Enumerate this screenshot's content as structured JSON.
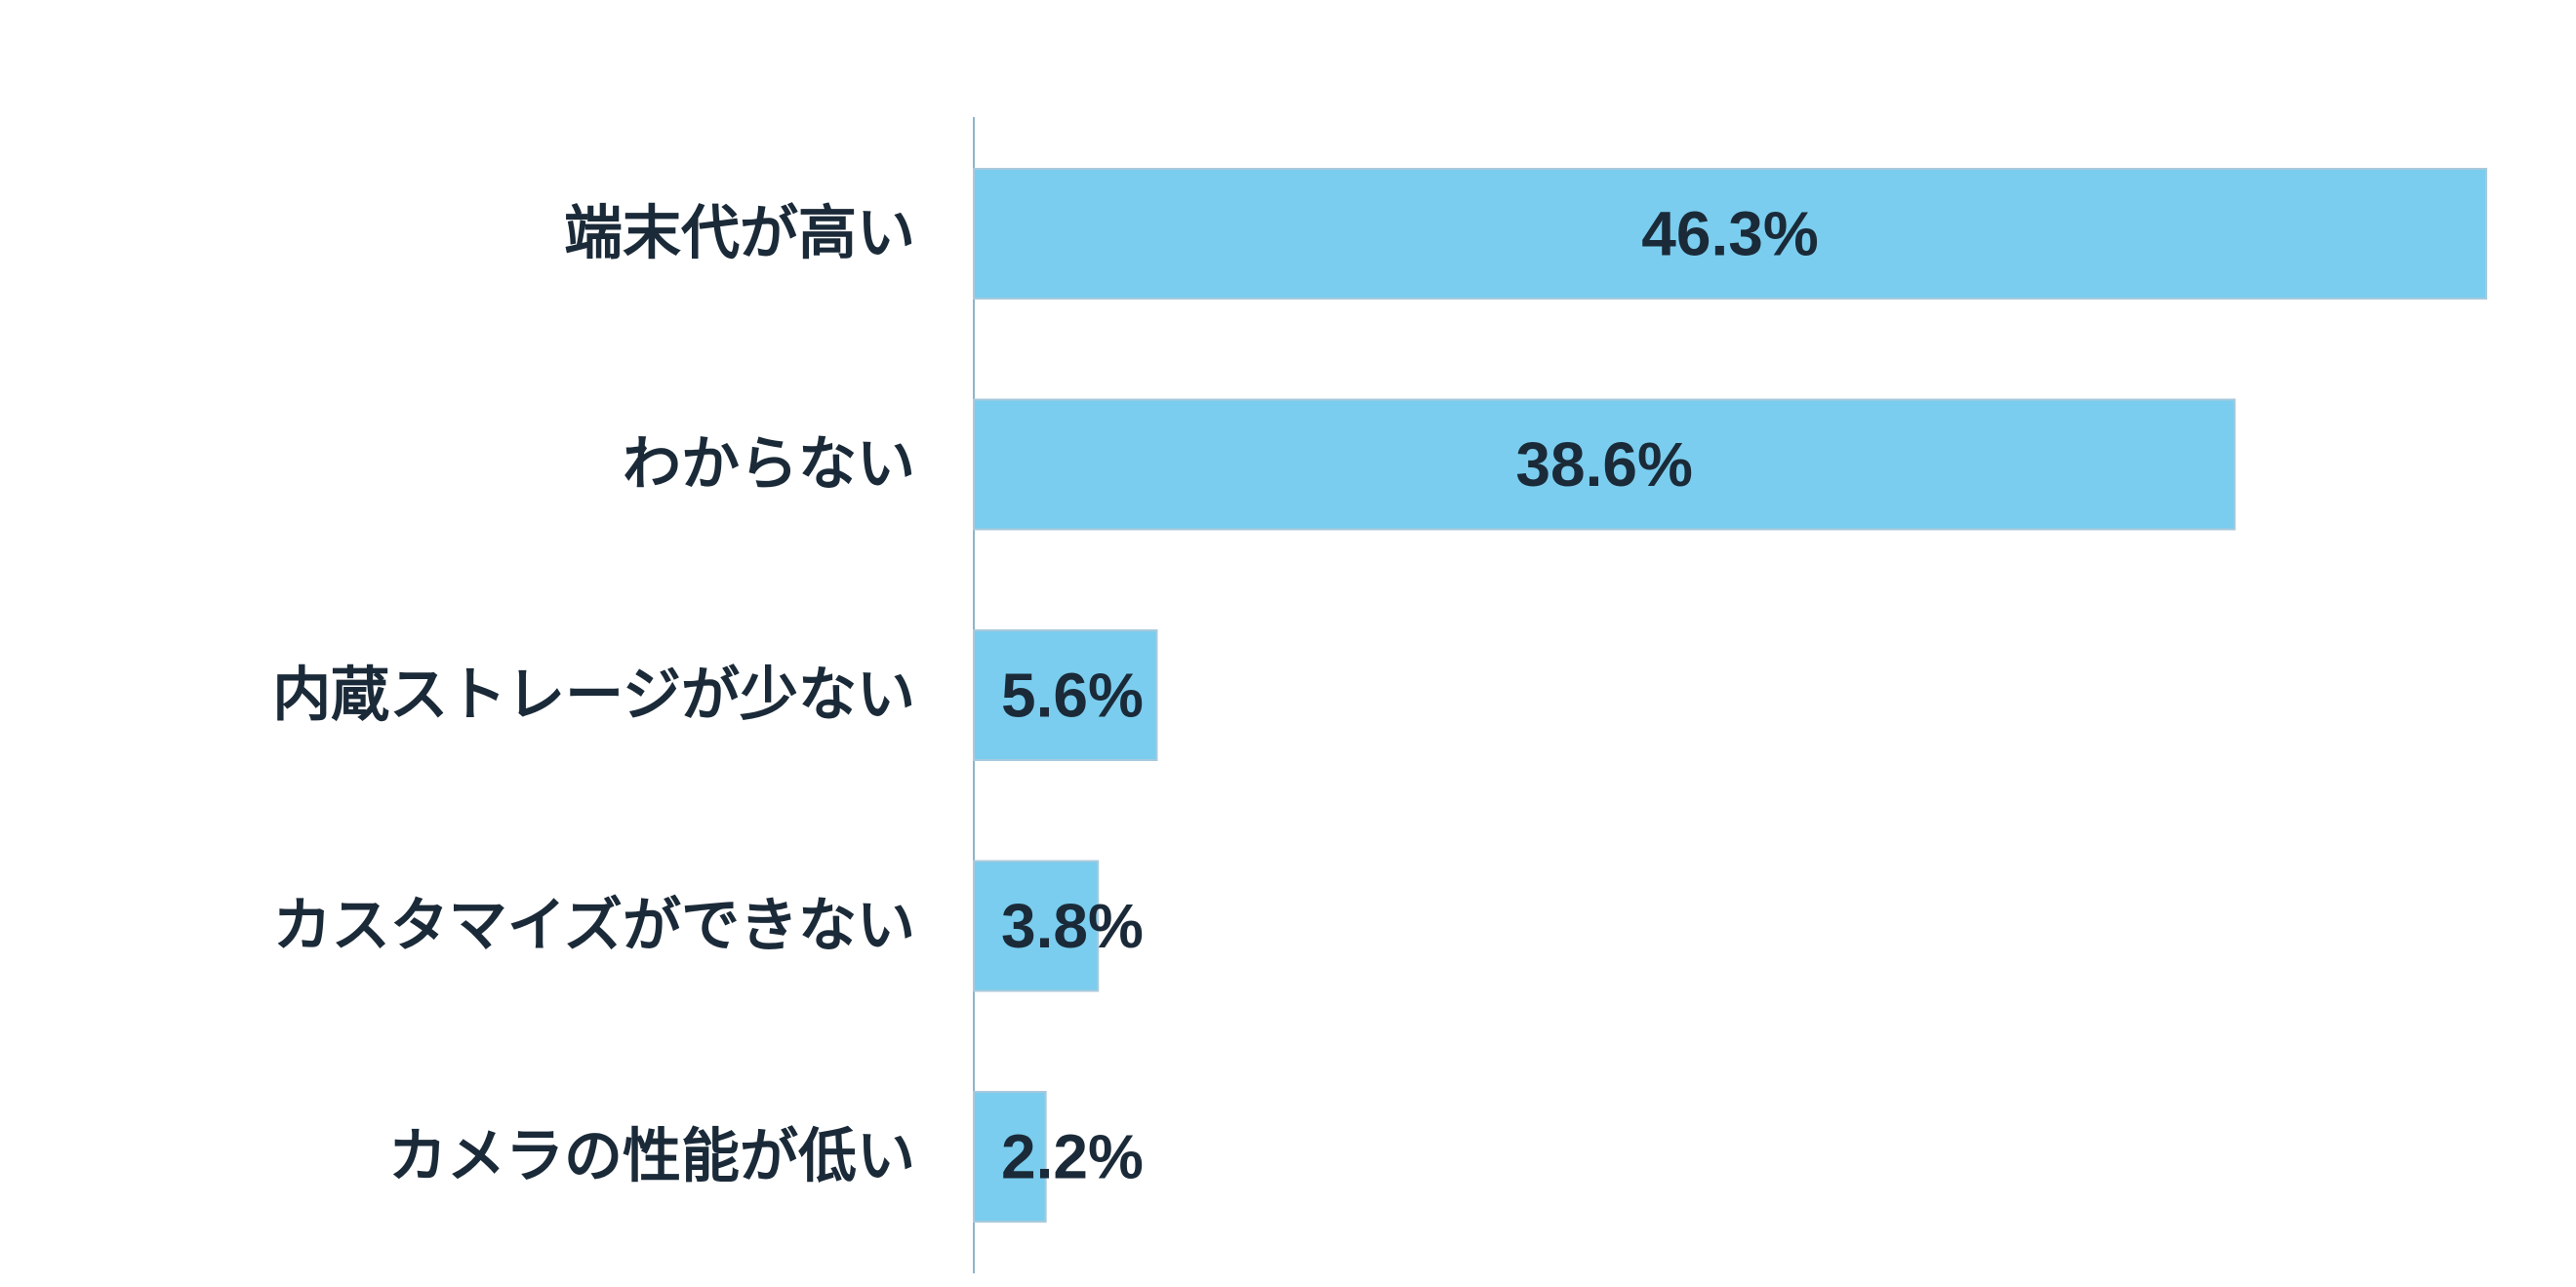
{
  "chart_data": {
    "type": "bar",
    "orientation": "horizontal",
    "title": "",
    "xlabel": "",
    "ylabel": "",
    "categories": [
      "端末代が高い",
      "わからない",
      "内蔵ストレージが少ない",
      "カスタマイズができない",
      "カメラの性能が低い"
    ],
    "values": [
      46.3,
      38.6,
      5.6,
      3.8,
      2.2
    ],
    "value_labels": [
      "46.3%",
      "38.6%",
      "5.6%",
      "3.8%",
      "2.2%"
    ],
    "unit": "%",
    "xlim": [
      0,
      46.3
    ],
    "grid": false,
    "legend": "none",
    "bar_color": "#7acdee",
    "text_color": "#1b2a38",
    "axis_color": "#8fb4cc"
  }
}
